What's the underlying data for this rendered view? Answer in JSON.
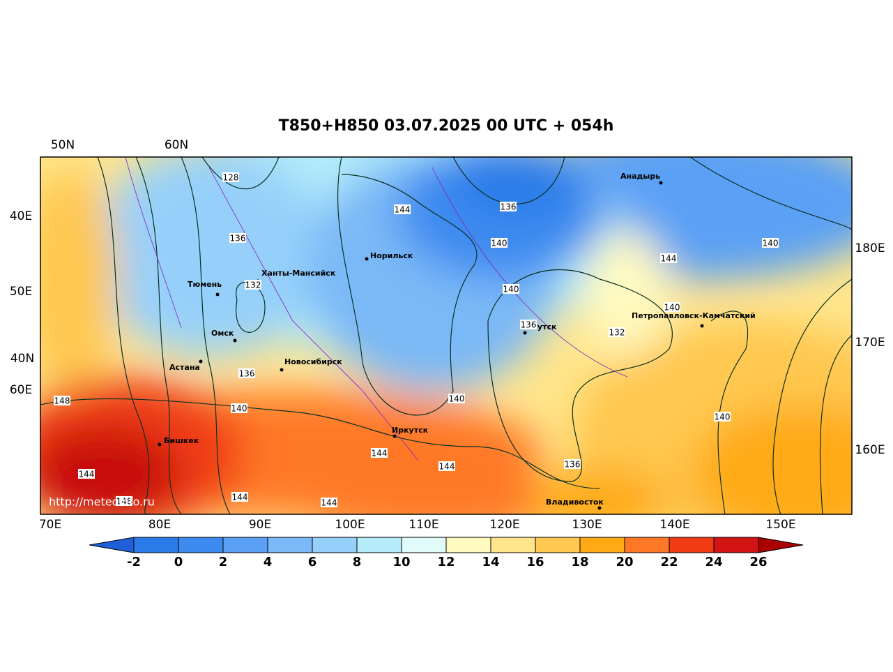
{
  "title": "T850+H850 03.07.2025 00 UTC + 054h",
  "top_labels": [
    "50N",
    "60N"
  ],
  "left_labels": [
    "40E",
    "50E",
    "40N",
    "60E"
  ],
  "right_labels": [
    "180E",
    "170E",
    "160E"
  ],
  "bottom_labels": [
    "70E",
    "80E",
    "90E",
    "100E",
    "110E",
    "120E",
    "130E",
    "140E",
    "150E"
  ],
  "cities": [
    "Норильск",
    "Ханты-Мансийск",
    "Тюмень",
    "Омск",
    "Астана",
    "Новосибирск",
    "Бишкек",
    "Иркутск",
    "Якутск",
    "Анадырь",
    "Петропавловск-Камчатский",
    "Владивосток"
  ],
  "contour_labels": [
    "128",
    "136",
    "132",
    "136",
    "140",
    "148",
    "144",
    "148",
    "144",
    "144",
    "144",
    "144",
    "140",
    "144",
    "136",
    "140",
    "140",
    "136",
    "132",
    "140",
    "144",
    "140",
    "140",
    "136"
  ],
  "source": "http://meteoinfo.ru",
  "colorbar": {
    "labels": [
      -2,
      0,
      2,
      4,
      6,
      8,
      10,
      12,
      14,
      16,
      18,
      20,
      22,
      24,
      26
    ],
    "colors": [
      "#1f5fd8",
      "#2b7be8",
      "#3d8bf0",
      "#5aa0f5",
      "#7ab8f7",
      "#96d0fa",
      "#b4ecfa",
      "#e0fbfa",
      "#fffac0",
      "#ffe68c",
      "#ffc850",
      "#ffaa14",
      "#ff7828",
      "#f03c14",
      "#d21414",
      "#aa0000"
    ]
  }
}
